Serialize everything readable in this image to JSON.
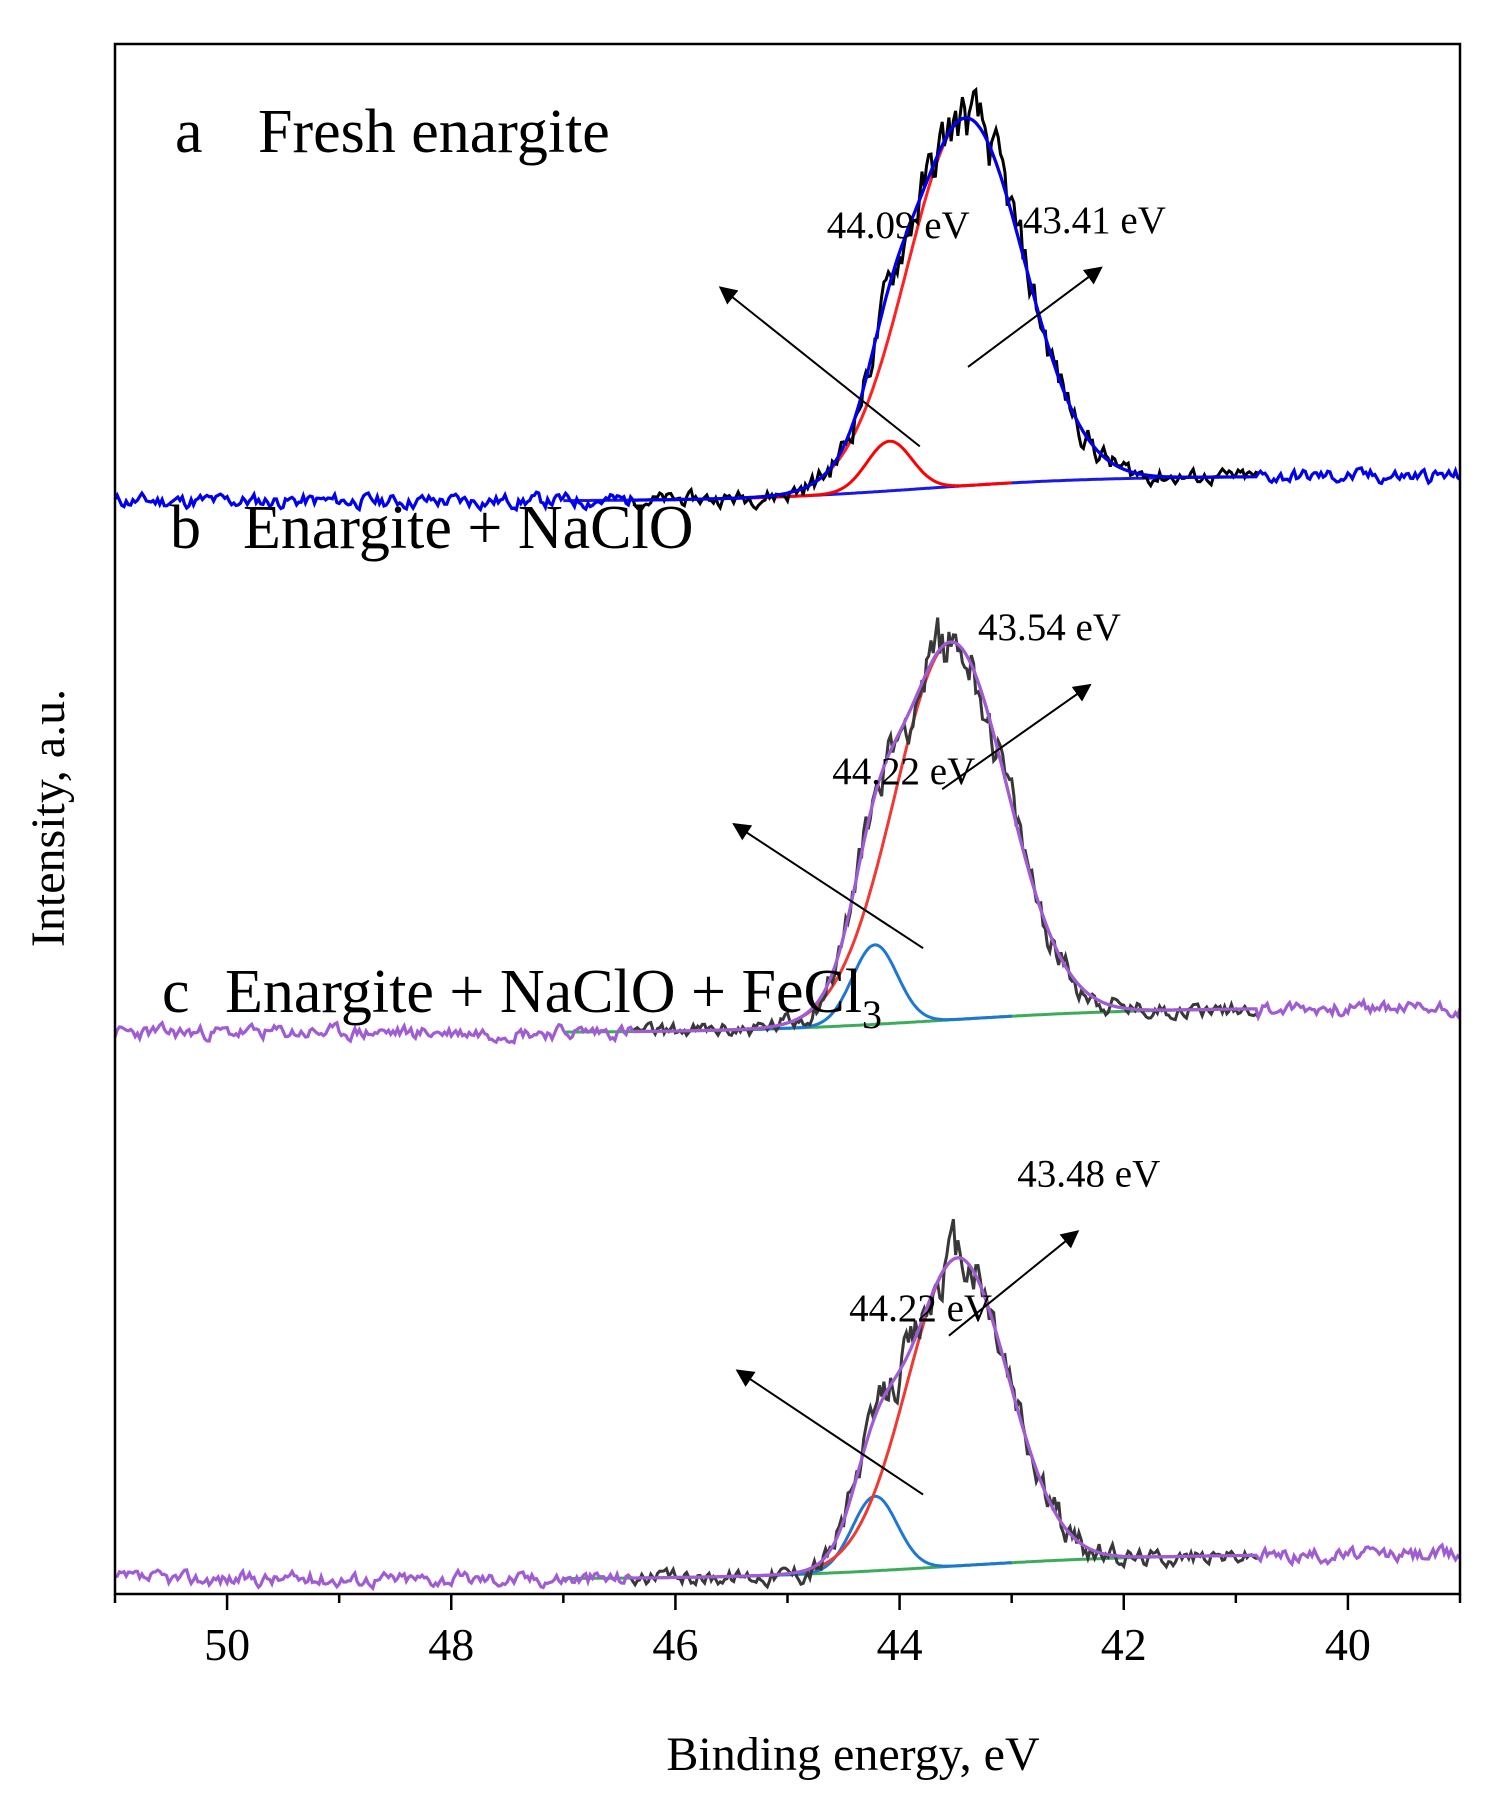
{
  "chart_data": {
    "type": "line",
    "xlabel": "Binding energy, eV",
    "ylabel": "Intensity, a.u.",
    "xlim": [
      51,
      39
    ],
    "x_reversed": true,
    "x_ticks": [
      50,
      48,
      46,
      44,
      42,
      40
    ],
    "x_ticks_text": [
      "50",
      "48",
      "46",
      "44",
      "42",
      "40"
    ],
    "x_minor_step": 1,
    "ylim": [
      0,
      3.12
    ],
    "y_ticks_visible": false,
    "grid": false,
    "panels": [
      {
        "letter": "a",
        "title": "Fresh enargite",
        "offset": 2.22,
        "baseline": {
          "left": 0.03,
          "right": -0.02,
          "center": 43.8,
          "width": 0.8
        },
        "noise_amp": 0.012,
        "noise_seed": 11,
        "components": [
          {
            "name": "44.09 eV component",
            "center": 44.09,
            "height": 0.1,
            "sigma": 0.2
          },
          {
            "name": "43.41 eV component",
            "center": 43.41,
            "height": 0.74,
            "sigma": 0.52
          }
        ],
        "colors": {
          "raw": "#000000",
          "envelope": "#0000ee",
          "peak_main": "#ff2020",
          "peak_minor": "#ff0000",
          "background": "#1a1ae6"
        },
        "annotations": [
          {
            "text": "44.09 eV",
            "text_x": 44.65,
            "text_y": 2.73,
            "arrow_from": [
              43.82,
              2.31
            ],
            "arrow_to": [
              45.6,
              2.63
            ]
          },
          {
            "text": "43.41 eV",
            "text_x": 42.9,
            "text_y": 2.74,
            "arrow_from": [
              43.39,
              2.47
            ],
            "arrow_to": [
              42.2,
              2.67
            ]
          }
        ]
      },
      {
        "letter": "b",
        "title": "Enargite + NaClO",
        "offset": 1.15,
        "baseline": {
          "left": 0.03,
          "right": -0.02,
          "center": 43.6,
          "width": 0.9
        },
        "noise_amp": 0.012,
        "noise_seed": 23,
        "components": [
          {
            "name": "44.22 eV component",
            "center": 44.22,
            "height": 0.16,
            "sigma": 0.2
          },
          {
            "name": "43.54 eV component",
            "center": 43.54,
            "height": 0.76,
            "sigma": 0.5
          }
        ],
        "colors": {
          "raw": "#383838",
          "envelope": "#a05cd2",
          "peak_main": "#ee3a34",
          "peak_minor": "#1f77d4",
          "background": "#3cab5a"
        },
        "annotations": [
          {
            "text": "44.22 eV",
            "text_x": 44.6,
            "text_y": 1.63,
            "arrow_from": [
              43.79,
              1.3
            ],
            "arrow_to": [
              45.48,
              1.55
            ]
          },
          {
            "text": "43.54 eV",
            "text_x": 43.3,
            "text_y": 1.92,
            "arrow_from": [
              43.62,
              1.62
            ],
            "arrow_to": [
              42.3,
              1.83
            ]
          }
        ]
      },
      {
        "letter": "c",
        "title": "Enargite + NaClO + FeCl",
        "title_sub": "3",
        "offset": 0.05,
        "baseline": {
          "left": 0.03,
          "right": -0.02,
          "center": 43.6,
          "width": 0.9
        },
        "noise_amp": 0.012,
        "noise_seed": 37,
        "components": [
          {
            "name": "44.22 eV component",
            "center": 44.22,
            "height": 0.15,
            "sigma": 0.2
          },
          {
            "name": "43.48 eV component",
            "center": 43.48,
            "height": 0.62,
            "sigma": 0.45
          }
        ],
        "colors": {
          "raw": "#383838",
          "envelope": "#a05cd2",
          "peak_main": "#ee3a34",
          "peak_minor": "#1f77d4",
          "background": "#3cab5a"
        },
        "annotations": [
          {
            "text": "44.22 eV",
            "text_x": 44.45,
            "text_y": 0.55,
            "arrow_from": [
              43.79,
              0.2
            ],
            "arrow_to": [
              45.45,
              0.45
            ]
          },
          {
            "text": "43.48 eV",
            "text_x": 42.95,
            "text_y": 0.82,
            "arrow_from": [
              43.56,
              0.52
            ],
            "arrow_to": [
              42.41,
              0.73
            ]
          }
        ]
      }
    ]
  }
}
